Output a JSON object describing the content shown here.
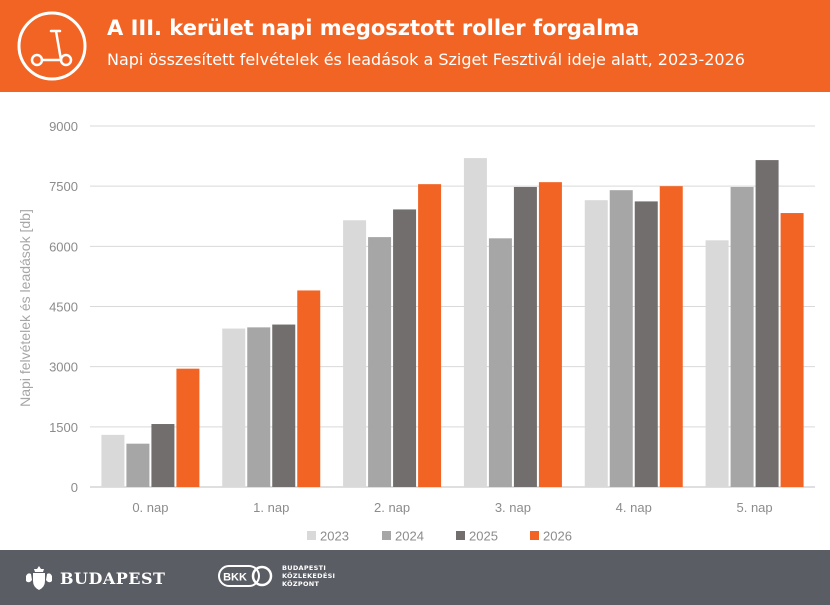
{
  "header": {
    "title": "A III. kerület napi megosztott roller forgalma",
    "subtitle": "Napi összesített felvételek és leadások a Sziget Fesztivál ideje alatt, 2023-2026",
    "icon": "scooter-icon",
    "background": "#f26424"
  },
  "chart_data": {
    "type": "bar",
    "categories": [
      "0. nap",
      "1. nap",
      "2. nap",
      "3. nap",
      "4. nap",
      "5. nap"
    ],
    "series": [
      {
        "name": "2023",
        "color": "#d9d9d9",
        "values": [
          1300,
          3950,
          6650,
          8200,
          7150,
          6150
        ]
      },
      {
        "name": "2024",
        "color": "#a6a6a6",
        "values": [
          1080,
          3980,
          6230,
          6200,
          7400,
          7480
        ]
      },
      {
        "name": "2025",
        "color": "#716e6d",
        "values": [
          1570,
          4050,
          6920,
          7480,
          7120,
          8150
        ]
      },
      {
        "name": "2026",
        "color": "#f26424",
        "values": [
          2950,
          4900,
          7550,
          7600,
          7500,
          6830
        ]
      }
    ],
    "title": "",
    "xlabel": "",
    "ylabel": "Napi felvételek és leadások [db]",
    "ylim": [
      0,
      9000
    ],
    "yticks": [
      "0",
      "1500",
      "3000",
      "4500",
      "6000",
      "7500",
      "9000"
    ],
    "grid": true,
    "legend": "bottom"
  },
  "footer": {
    "budapest_label": "BUDAPEST",
    "budapest_icon": "budapest-coat-of-arms-icon",
    "bkk_label": "BKK",
    "bkk_lines": [
      "BUDAPESTI",
      "KÖZLEKEDÉSI",
      "KÖZPONT"
    ],
    "background": "#5a5d64"
  }
}
